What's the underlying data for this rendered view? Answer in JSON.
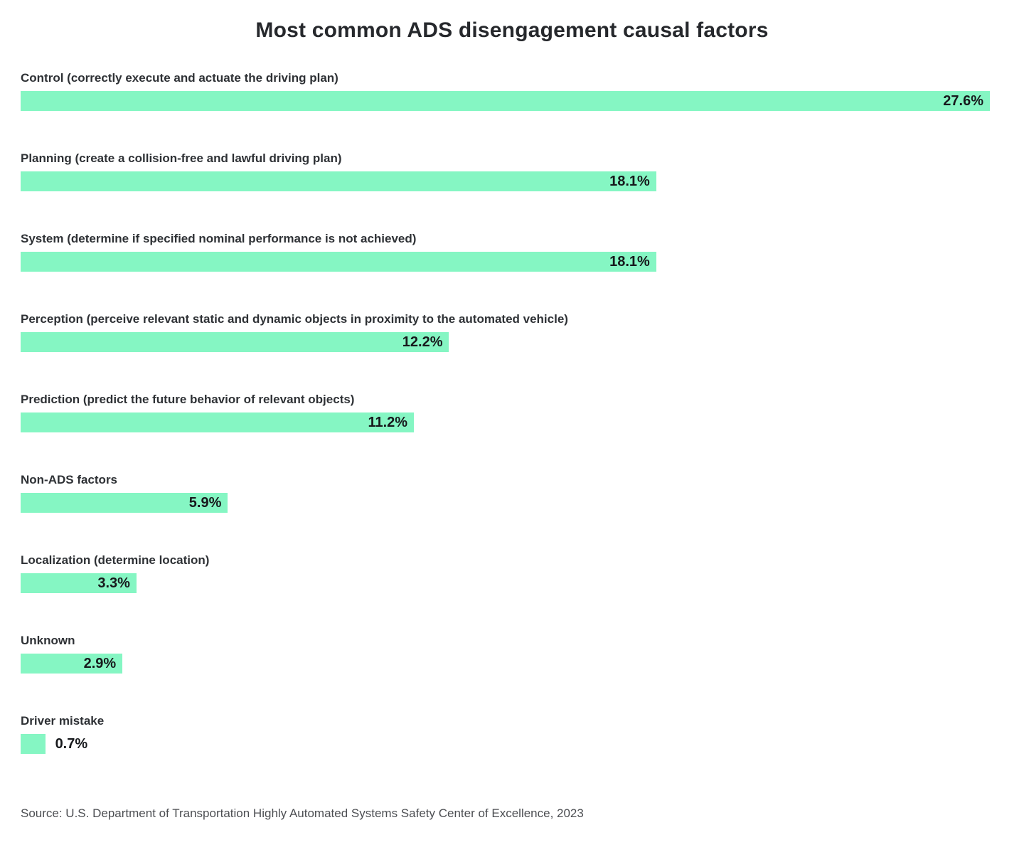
{
  "title": "Most common ADS disengagement causal factors",
  "source": "Source: U.S. Department of Transportation Highly Automated Systems Safety Center of Excellence, 2023",
  "colors": {
    "bar": "#85f6c3",
    "title_text": "#26282c",
    "category_text": "#2e3135",
    "value_text": "#17191c",
    "source_text": "#4c4e52",
    "background": "#ffffff"
  },
  "chart_data": {
    "type": "bar",
    "orientation": "horizontal",
    "title": "Most common ADS disengagement causal factors",
    "xlabel": "",
    "ylabel": "",
    "xlim": [
      0,
      27.6
    ],
    "grid": false,
    "legend": false,
    "categories": [
      "Control (correctly execute and actuate the driving plan)",
      "Planning (create a collision-free and lawful driving plan)",
      "System (determine if specified nominal performance is not achieved)",
      "Perception (perceive relevant static and dynamic objects in proximity to the automated vehicle)",
      "Prediction (predict the future behavior of relevant objects)",
      "Non-ADS factors",
      "Localization (determine location)",
      "Unknown",
      "Driver mistake"
    ],
    "values": [
      27.6,
      18.1,
      18.1,
      12.2,
      11.2,
      5.9,
      3.3,
      2.9,
      0.7
    ],
    "value_labels": [
      "27.6%",
      "18.1%",
      "18.1%",
      "12.2%",
      "11.2%",
      "5.9%",
      "3.3%",
      "2.9%",
      "0.7%"
    ]
  }
}
